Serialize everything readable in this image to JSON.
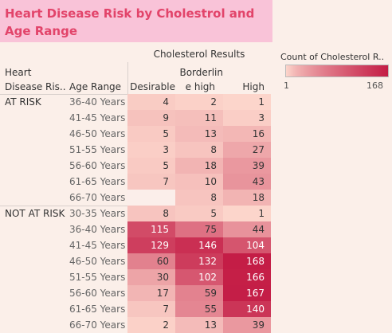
{
  "chart_data": {
    "type": "heatmap",
    "title": "Heart Disease Risk by Cholestrol and Age Range",
    "column_group_title": "Cholesterol  Results",
    "row_headers": {
      "risk": [
        "Heart",
        "Disease Ris.."
      ],
      "age": "Age Range"
    },
    "columns": [
      [
        "Desirable"
      ],
      [
        "Borderlin",
        "e high"
      ],
      [
        "High"
      ]
    ],
    "groups": [
      {
        "name": "AT RISK",
        "rows": [
          {
            "age": "36-40 Years",
            "values": [
              4,
              2,
              1
            ]
          },
          {
            "age": "41-45 Years",
            "values": [
              9,
              11,
              3
            ]
          },
          {
            "age": "46-50 Years",
            "values": [
              5,
              13,
              16
            ]
          },
          {
            "age": "51-55 Years",
            "values": [
              3,
              8,
              27
            ]
          },
          {
            "age": "56-60 Years",
            "values": [
              5,
              18,
              39
            ]
          },
          {
            "age": "61-65 Years",
            "values": [
              7,
              10,
              43
            ]
          },
          {
            "age": "66-70 Years",
            "values": [
              null,
              8,
              18
            ]
          }
        ]
      },
      {
        "name": "NOT AT RISK",
        "rows": [
          {
            "age": "30-35 Years",
            "values": [
              8,
              5,
              1
            ]
          },
          {
            "age": "36-40 Years",
            "values": [
              115,
              75,
              44
            ]
          },
          {
            "age": "41-45 Years",
            "values": [
              129,
              146,
              104
            ]
          },
          {
            "age": "46-50 Years",
            "values": [
              60,
              132,
              168
            ]
          },
          {
            "age": "51-55 Years",
            "values": [
              30,
              102,
              166
            ]
          },
          {
            "age": "56-60 Years",
            "values": [
              17,
              59,
              167
            ]
          },
          {
            "age": "61-65 Years",
            "values": [
              7,
              55,
              140
            ]
          },
          {
            "age": "66-70 Years",
            "values": [
              2,
              13,
              39
            ]
          }
        ]
      }
    ],
    "legend": {
      "title": "Count of Cholesterol  R..",
      "min_label": "1",
      "max_label": "168",
      "min": 1,
      "max": 168,
      "color_low": "#fcd5cb",
      "color_high": "#c41d46"
    },
    "empty_cell_color": "#fbeeea"
  }
}
